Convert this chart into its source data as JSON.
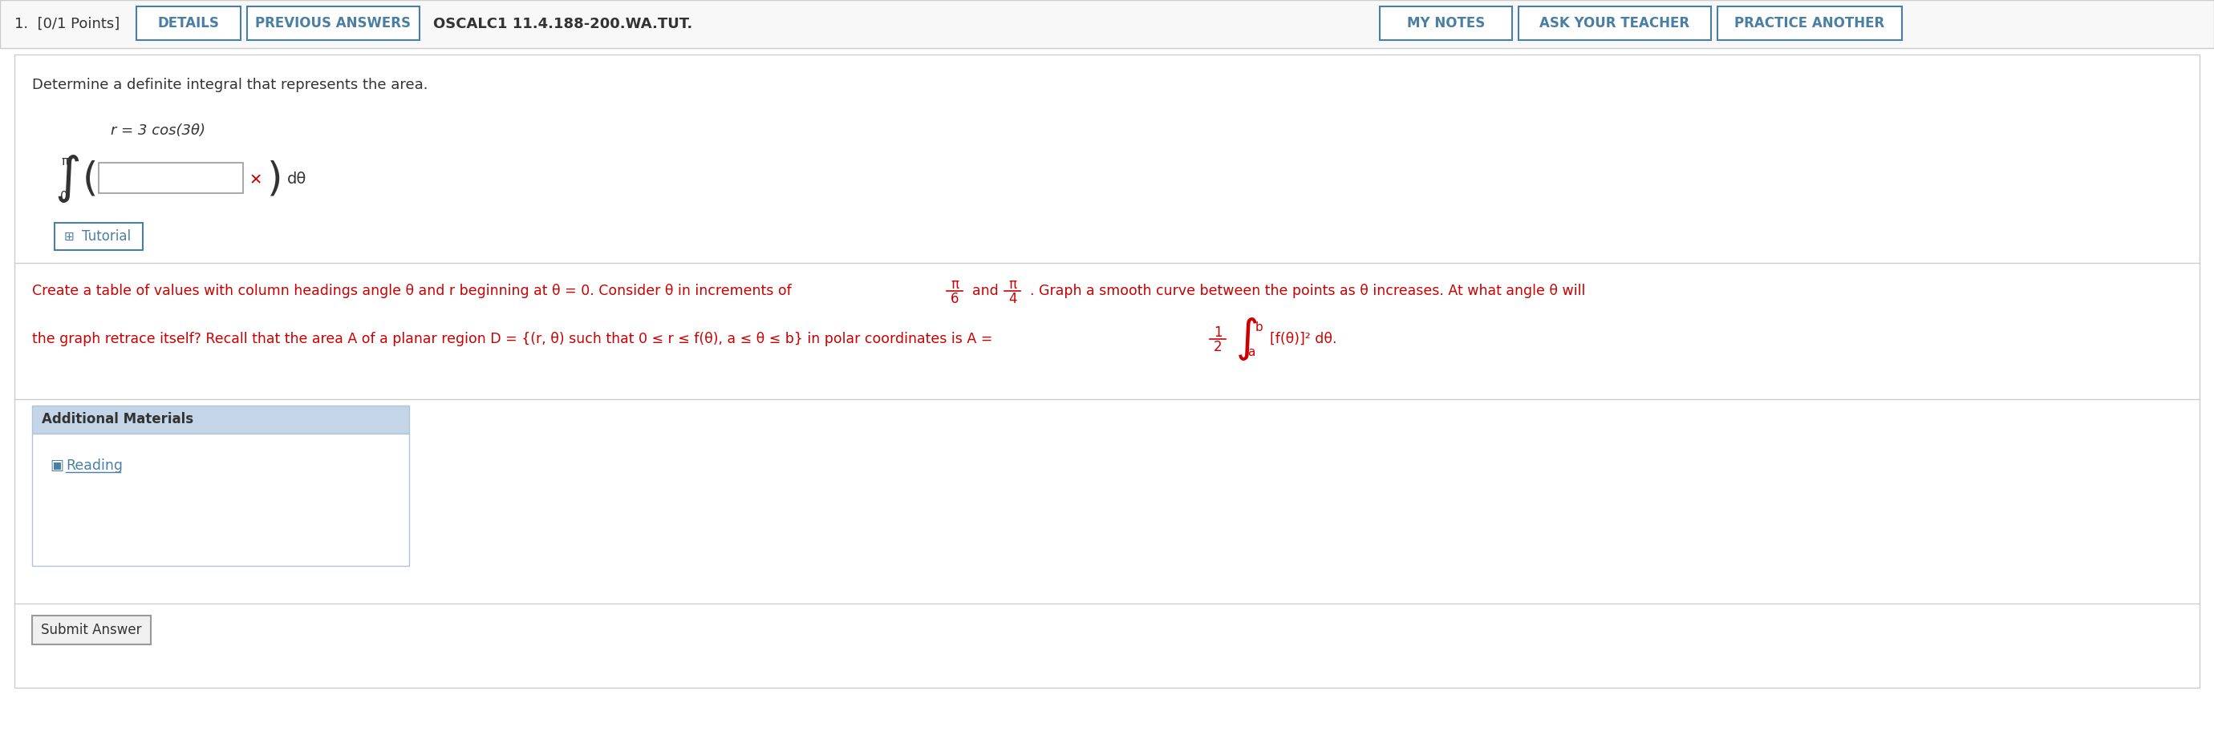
{
  "bg_color": "#ffffff",
  "top_bar_bg": "#ffffff",
  "top_bar_border": "#cccccc",
  "header_text": "1.  [0/1 Points]",
  "header_text_color": "#333333",
  "btn_details_text": "DETAILS",
  "btn_prev_text": "PREVIOUS ANSWERS",
  "btn_course_text": "OSCALC1 11.4.188-200.WA.TUT.",
  "btn_mynotes_text": "MY NOTES",
  "btn_teacher_text": "ASK YOUR TEACHER",
  "btn_practice_text": "PRACTICE ANOTHER",
  "btn_border_color": "#4a7fa5",
  "btn_text_color": "#4a7fa5",
  "btn_bg": "#ffffff",
  "content_bg": "#ffffff",
  "content_border": "#cccccc",
  "problem_text": "Determine a definite integral that represents the area.",
  "problem_text_color": "#333333",
  "equation_r": "r = 3 cos(3θ)",
  "equation_color": "#333333",
  "integral_lower": "0",
  "integral_upper": "π",
  "input_box_color": "#ffffff",
  "input_box_border": "#999999",
  "x_mark_color": "#cc0000",
  "dtheta_text": "dθ",
  "tutorial_btn_text": "Tutorial",
  "tutorial_btn_border": "#4a7fa5",
  "tutorial_btn_text_color": "#4a7fa5",
  "tutorial_icon_color": "#4a7fa5",
  "hint_text_line1": "Create a table of values with column headings angle θ and r beginning at θ = 0. Consider θ in increments of π/6 and π/4. Graph a smooth curve between the points as θ increases. At what angle θ will",
  "hint_text_line2": "the graph retrace itself? Recall that the area A of a planar region D = {(r, θ) such that 0 ≤ r ≤ f(θ), a ≤ θ ≤ b} in polar coordinates is A = (1/2) ∫_a^b [f(θ)]² dθ.",
  "hint_text_color": "#cc0000",
  "additional_materials_text": "Additional Materials",
  "additional_bg": "#dce6f0",
  "additional_border": "#cccccc",
  "reading_text": "Reading",
  "reading_color": "#4a7fa5",
  "reading_icon_color": "#4a7fa5",
  "submit_btn_text": "Submit Answer",
  "submit_btn_border": "#999999",
  "submit_btn_color": "#333333",
  "submit_btn_bg": "#f0f0f0"
}
